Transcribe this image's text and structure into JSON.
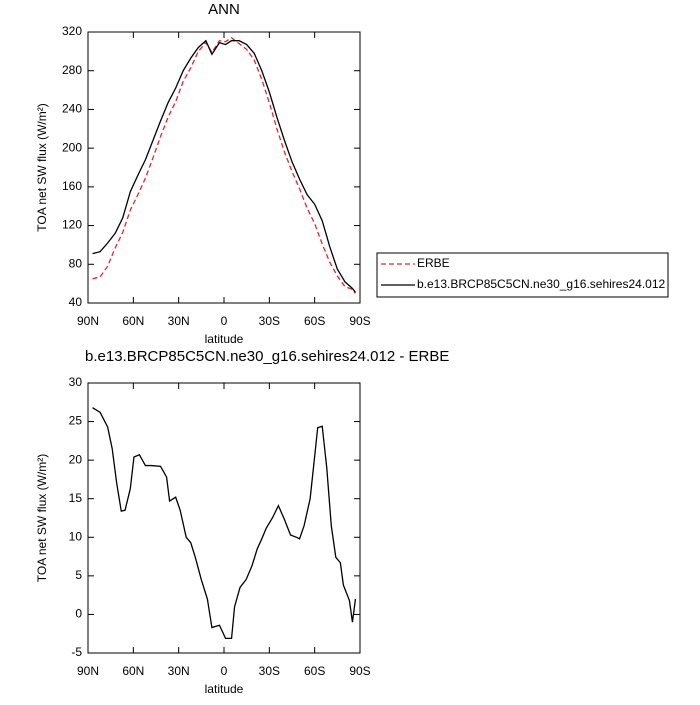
{
  "chart_data": [
    {
      "type": "line",
      "title": "ANN",
      "xlabel": "latitude",
      "ylabel": "TOA net SW flux (W/m²)",
      "x": [
        87,
        82,
        77,
        72,
        67,
        62,
        57,
        52,
        47,
        42,
        37,
        32,
        27,
        22,
        17,
        12,
        8,
        3,
        -1,
        -5,
        -10,
        -15,
        -20,
        -25,
        -30,
        -35,
        -40,
        -45,
        -50,
        -55,
        -60,
        -65,
        -70,
        -75,
        -80,
        -85,
        -87
      ],
      "series": [
        {
          "name": "ERBE",
          "color": "#e8262a",
          "dash": true,
          "values": [
            65,
            67,
            78,
            97,
            113,
            136,
            152,
            169,
            190,
            212,
            232,
            248,
            269,
            283,
            300,
            309,
            299,
            311,
            310,
            314,
            308,
            302,
            291,
            271,
            247,
            220,
            196,
            176,
            158,
            138,
            122,
            101,
            82,
            68,
            57,
            54,
            50
          ]
        },
        {
          "name": "b.e13.BRCP85C5CN.ne30_g16.sehires24.012",
          "color": "#000000",
          "dash": false,
          "values": [
            91,
            93,
            102,
            112,
            128,
            155,
            172,
            188,
            208,
            228,
            247,
            262,
            280,
            293,
            304,
            311,
            297,
            309,
            307,
            311,
            311,
            307,
            298,
            280,
            258,
            232,
            208,
            186,
            168,
            152,
            142,
            125,
            98,
            75,
            62,
            55,
            51
          ]
        }
      ],
      "xlim": [
        90,
        -90
      ],
      "ylim": [
        40,
        320
      ],
      "xticks": [
        {
          "value": 90,
          "label": "90N"
        },
        {
          "value": 60,
          "label": "60N"
        },
        {
          "value": 30,
          "label": "30N"
        },
        0,
        {
          "value": -30,
          "label": "30S"
        },
        {
          "value": -60,
          "label": "60S"
        },
        {
          "value": -90,
          "label": "90S"
        }
      ],
      "yticks": [
        40,
        80,
        120,
        160,
        200,
        240,
        280,
        320
      ],
      "legend": "outside-right"
    },
    {
      "type": "line",
      "title": "b.e13.BRCP85C5CN.ne30_g16.sehires24.012 - ERBE",
      "xlabel": "latitude",
      "ylabel": "TOA net SW flux (W/m²)",
      "x": [
        87,
        82,
        77,
        74,
        71,
        68,
        65.5,
        62,
        59.6,
        56,
        52,
        48,
        42,
        38,
        36,
        32,
        29,
        25,
        22,
        19,
        15,
        11,
        8,
        3,
        -1,
        -5,
        -7,
        -10.6,
        -14.6,
        -18.5,
        -22,
        -25,
        -28,
        -32,
        -36,
        -40,
        -44,
        -48,
        -50,
        -53,
        -57,
        -60,
        -62,
        -65,
        -68,
        -71,
        -74,
        -77,
        -79,
        -83,
        -85,
        -87
      ],
      "series": [
        {
          "color": "#000000",
          "dash": false,
          "values": [
            26.8,
            26.2,
            24.3,
            21.5,
            17,
            13.4,
            13.5,
            16.3,
            20.4,
            20.7,
            19.3,
            19.3,
            19.2,
            17.8,
            14.7,
            15.2,
            13.5,
            10,
            9.3,
            7.4,
            4.5,
            2,
            -1.7,
            -1.4,
            -3.1,
            -3.1,
            1,
            3.5,
            4.5,
            6.3,
            8.5,
            9.8,
            11.2,
            12.5,
            14.1,
            12.3,
            10.3,
            10,
            9.8,
            11.5,
            15,
            20.5,
            24.2,
            24.4,
            19,
            11.5,
            7.4,
            6.7,
            3.8,
            1.8,
            -1,
            2
          ]
        }
      ],
      "xlim": [
        90,
        -90
      ],
      "ylim": [
        -5,
        30
      ],
      "xticks": [
        {
          "value": 90,
          "label": "90N"
        },
        {
          "value": 60,
          "label": "60N"
        },
        {
          "value": 30,
          "label": "30N"
        },
        0,
        {
          "value": -30,
          "label": "30S"
        },
        {
          "value": -60,
          "label": "60S"
        },
        {
          "value": -90,
          "label": "90S"
        }
      ],
      "yticks": [
        -5,
        0,
        5,
        10,
        15,
        20,
        25,
        30
      ]
    }
  ]
}
